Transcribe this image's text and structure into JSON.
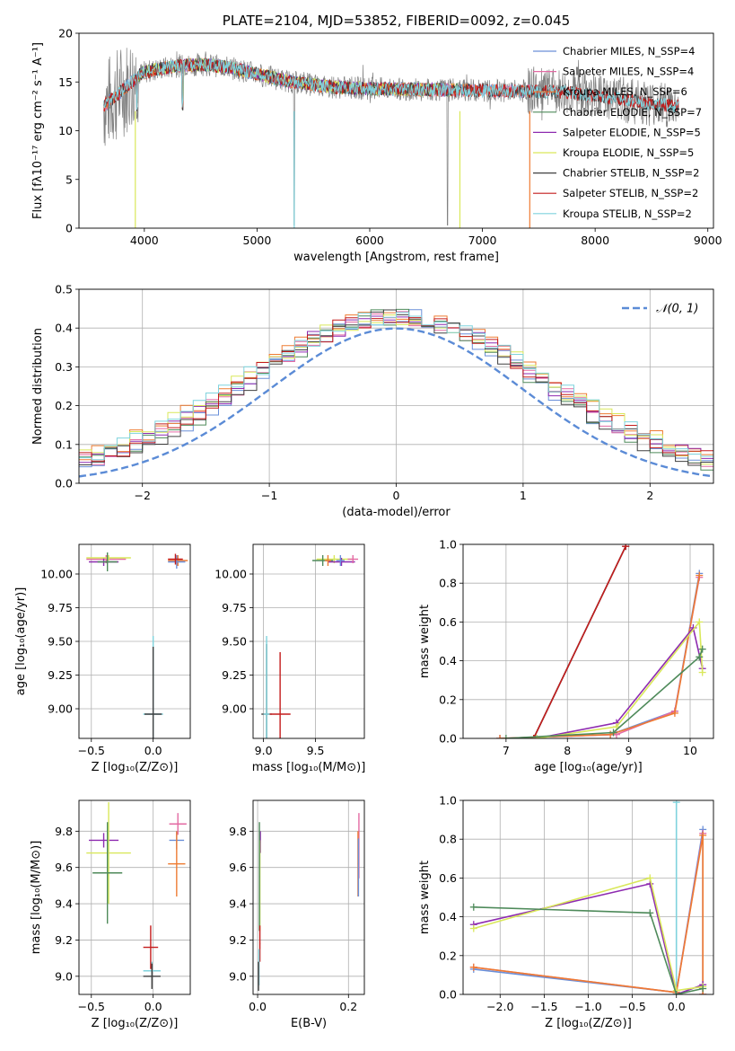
{
  "chart_data": [
    {
      "id": "spectrum",
      "type": "line",
      "title": "PLATE=2104, MJD=53852, FIBERID=0092, z=0.045",
      "xlabel": "wavelength [Angstrom, rest frame]",
      "ylabel": "Flux [fλ10⁻¹⁷ erg cm⁻² s⁻¹ A⁻¹]",
      "xlim": [
        3420,
        9050
      ],
      "ylim": [
        0,
        20
      ],
      "xticks": [
        4000,
        5000,
        6000,
        7000,
        8000,
        9000
      ],
      "yticks": [
        0,
        5,
        10,
        15,
        20
      ],
      "legend_position": "upper right",
      "observed": {
        "color": "#808080",
        "wave_range": [
          3640,
          8740
        ],
        "masked_lines_at": [
          5330,
          6690
        ]
      },
      "series": [
        {
          "name": "Chabrier MILES, N_SSP=4",
          "color": "#6a8fd8",
          "wave_range": [
            3640,
            7420
          ]
        },
        {
          "name": "Salpeter MILES, N_SSP=4",
          "color": "#e36aa3",
          "wave_range": [
            3640,
            7420
          ]
        },
        {
          "name": "Kroupa MILES, N_SSP=6",
          "color": "#ee7b32",
          "wave_range": [
            3640,
            7420
          ]
        },
        {
          "name": "Chabrier ELODIE, N_SSP=7",
          "color": "#4e8a5a",
          "wave_range": [
            3900,
            6800
          ]
        },
        {
          "name": "Salpeter ELODIE, N_SSP=5",
          "color": "#8e2bb0",
          "wave_range": [
            3900,
            6800
          ]
        },
        {
          "name": "Kroupa ELODIE, N_SSP=5",
          "color": "#d9e85a",
          "wave_range": [
            3900,
            6800
          ]
        },
        {
          "name": "Chabrier STELIB, N_SSP=2",
          "color": "#404040",
          "wave_range": [
            3640,
            8740
          ]
        },
        {
          "name": "Salpeter STELIB, N_SSP=2",
          "color": "#c41c1c",
          "wave_range": [
            3640,
            8740
          ]
        },
        {
          "name": "Kroupa STELIB, N_SSP=2",
          "color": "#7fd3dd",
          "wave_range": [
            3640,
            8740
          ]
        }
      ]
    },
    {
      "id": "residuals",
      "type": "line",
      "xlabel": "(data-model)/error",
      "ylabel": "Normed distribution",
      "xlim": [
        -2.5,
        2.5
      ],
      "ylim": [
        0,
        0.5
      ],
      "xticks": [
        -2,
        -1,
        0,
        1,
        2
      ],
      "yticks": [
        0.0,
        0.1,
        0.2,
        0.3,
        0.4,
        0.5
      ],
      "grid": true,
      "legend_position": "upper right",
      "reference": {
        "name": "𝒩(0, 1)",
        "color": "#5b8bd6",
        "style": "dashed",
        "mean": 0,
        "sigma": 1
      },
      "histograms": {
        "bin_width": 0.1,
        "x_start": -2.5,
        "n_bins": 50,
        "peak_approx": 0.47,
        "colors": [
          "#6a8fd8",
          "#e36aa3",
          "#ee7b32",
          "#4e8a5a",
          "#8e2bb0",
          "#d9e85a",
          "#404040",
          "#c41c1c",
          "#7fd3dd"
        ]
      }
    },
    {
      "id": "age-vs-Z",
      "type": "scatter",
      "xlabel": "Z [log₁₀(Z/Z⊙)]",
      "ylabel": "age  [log₁₀(age/yr)]",
      "xlim": [
        -0.6,
        0.3
      ],
      "ylim": [
        8.78,
        10.22
      ],
      "xticks": [
        -0.5,
        0.0
      ],
      "yticks": [
        9.0,
        9.25,
        9.5,
        9.75,
        10.0
      ],
      "points": [
        {
          "x": -0.38,
          "y": 10.11,
          "xerr": 0.16,
          "yerr": 0.03,
          "color": "#e36aa3"
        },
        {
          "x": -0.4,
          "y": 10.09,
          "xerr": 0.12,
          "yerr": 0.03,
          "color": "#8e2bb0"
        },
        {
          "x": -0.36,
          "y": 10.12,
          "xerr": 0.18,
          "yerr": 0.02,
          "color": "#d9e85a"
        },
        {
          "x": -0.37,
          "y": 10.09,
          "xerr": 0.08,
          "yerr": 0.07,
          "color": "#4e8a5a"
        },
        {
          "x": 0.2,
          "y": 10.1,
          "xerr": 0.08,
          "yerr": 0.04,
          "color": "#ee7b32"
        },
        {
          "x": 0.19,
          "y": 10.09,
          "xerr": 0.07,
          "yerr": 0.05,
          "color": "#6a8fd8"
        },
        {
          "x": 0.18,
          "y": 10.11,
          "xerr": 0.06,
          "yerr": 0.04,
          "color": "#c41c1c"
        },
        {
          "x": 0.0,
          "y": 8.96,
          "xerr": 0.08,
          "yerr": 0.58,
          "color": "#7fd3dd"
        },
        {
          "x": 0.0,
          "y": 8.96,
          "xerr": 0.07,
          "yerr": 0.5,
          "color": "#404040"
        }
      ]
    },
    {
      "id": "age-vs-mass",
      "type": "scatter",
      "xlabel": "mass [log₁₀(M/M⊙)]",
      "xlim": [
        8.9,
        9.97
      ],
      "ylim": [
        8.78,
        10.22
      ],
      "xticks": [
        9.0,
        9.5
      ],
      "yticks": [
        9.0,
        9.25,
        9.5,
        9.75,
        10.0
      ],
      "points": [
        {
          "x": 9.68,
          "y": 10.11,
          "xerr": 0.17,
          "yerr": 0.03,
          "color": "#d9e85a"
        },
        {
          "x": 9.75,
          "y": 10.09,
          "xerr": 0.13,
          "yerr": 0.03,
          "color": "#8e2bb0"
        },
        {
          "x": 9.57,
          "y": 10.1,
          "xerr": 0.1,
          "yerr": 0.04,
          "color": "#4e8a5a"
        },
        {
          "x": 9.86,
          "y": 10.11,
          "xerr": 0.05,
          "yerr": 0.03,
          "color": "#e36aa3"
        },
        {
          "x": 9.74,
          "y": 10.1,
          "xerr": 0.04,
          "yerr": 0.04,
          "color": "#6a8fd8"
        },
        {
          "x": 9.62,
          "y": 10.1,
          "xerr": 0.03,
          "yerr": 0.04,
          "color": "#ee7b32"
        },
        {
          "x": 9.03,
          "y": 8.96,
          "xerr": 0.05,
          "yerr": 0.52,
          "color": "#404040"
        },
        {
          "x": 9.03,
          "y": 8.96,
          "xerr": 0.03,
          "yerr": 0.58,
          "color": "#7fd3dd"
        },
        {
          "x": 9.16,
          "y": 8.96,
          "xerr": 0.1,
          "yerr": 0.46,
          "color": "#c41c1c"
        }
      ]
    },
    {
      "id": "massweight-vs-age",
      "type": "line",
      "xlabel": "age  [log₁₀(age/yr)]",
      "ylabel": "mass weight",
      "xlim": [
        6.3,
        10.38
      ],
      "ylim": [
        0,
        1.0
      ],
      "xticks": [
        7,
        8,
        9,
        10
      ],
      "yticks": [
        0.0,
        0.2,
        0.4,
        0.6,
        0.8,
        1.0
      ],
      "series": [
        {
          "color": "#7fd3dd",
          "x": [
            7.45,
            8.95
          ],
          "y": [
            0.0,
            0.99
          ]
        },
        {
          "color": "#404040",
          "x": [
            7.45,
            8.95
          ],
          "y": [
            0.0,
            0.99
          ]
        },
        {
          "color": "#c41c1c",
          "x": [
            7.45,
            8.95
          ],
          "y": [
            0.0,
            0.99
          ]
        },
        {
          "color": "#6a8fd8",
          "x": [
            6.9,
            8.7,
            9.75,
            10.15
          ],
          "y": [
            0.0,
            0.02,
            0.14,
            0.85
          ]
        },
        {
          "color": "#e36aa3",
          "x": [
            6.9,
            8.8,
            9.75,
            10.15
          ],
          "y": [
            0.0,
            0.02,
            0.14,
            0.83
          ]
        },
        {
          "color": "#ee7b32",
          "x": [
            6.9,
            8.7,
            9.75,
            10.15
          ],
          "y": [
            0.0,
            0.02,
            0.13,
            0.84
          ]
        },
        {
          "color": "#8e2bb0",
          "x": [
            7.5,
            8.8,
            10.05,
            10.2
          ],
          "y": [
            0.0,
            0.08,
            0.57,
            0.36
          ]
        },
        {
          "color": "#d9e85a",
          "x": [
            7.5,
            8.8,
            10.15,
            10.2
          ],
          "y": [
            0.0,
            0.06,
            0.6,
            0.34
          ]
        },
        {
          "color": "#4e8a5a",
          "x": [
            7.0,
            8.75,
            10.15,
            10.2
          ],
          "y": [
            0.0,
            0.03,
            0.42,
            0.46
          ]
        }
      ]
    },
    {
      "id": "mass-vs-Z",
      "type": "scatter",
      "xlabel": "Z [log₁₀(Z/Z⊙)]",
      "ylabel": "mass [log₁₀(M/M⊙)]",
      "xlim": [
        -0.6,
        0.3
      ],
      "ylim": [
        8.9,
        9.97
      ],
      "xticks": [
        -0.5,
        0.0
      ],
      "yticks": [
        9.0,
        9.2,
        9.4,
        9.6,
        9.8
      ],
      "points": [
        {
          "x": 0.2,
          "y": 9.84,
          "xerr": 0.07,
          "yerr": 0.06,
          "color": "#e36aa3"
        },
        {
          "x": -0.4,
          "y": 9.75,
          "xerr": 0.12,
          "yerr": 0.04,
          "color": "#8e2bb0"
        },
        {
          "x": 0.19,
          "y": 9.75,
          "xerr": 0.06,
          "yerr": 0.05,
          "color": "#6a8fd8"
        },
        {
          "x": -0.36,
          "y": 9.68,
          "xerr": 0.18,
          "yerr": 0.28,
          "color": "#d9e85a"
        },
        {
          "x": 0.19,
          "y": 9.62,
          "xerr": 0.07,
          "yerr": 0.18,
          "color": "#ee7b32"
        },
        {
          "x": -0.37,
          "y": 9.57,
          "xerr": 0.12,
          "yerr": 0.28,
          "color": "#4e8a5a"
        },
        {
          "x": -0.02,
          "y": 9.16,
          "xerr": 0.06,
          "yerr": 0.12,
          "color": "#c41c1c"
        },
        {
          "x": -0.01,
          "y": 9.03,
          "xerr": 0.07,
          "yerr": 0.05,
          "color": "#7fd3dd"
        },
        {
          "x": -0.01,
          "y": 9.0,
          "xerr": 0.07,
          "yerr": 0.07,
          "color": "#404040"
        }
      ]
    },
    {
      "id": "mass-vs-ebv",
      "type": "scatter",
      "xlabel": "E(B-V)",
      "xlim": [
        -0.01,
        0.235
      ],
      "ylim": [
        8.9,
        9.97
      ],
      "xticks": [
        0.0,
        0.2
      ],
      "yticks": [
        9.0,
        9.2,
        9.4,
        9.6,
        9.8
      ],
      "points": [
        {
          "x": 0.223,
          "y": 9.72,
          "xerr": 0.001,
          "yerr": 0.18,
          "color": "#e36aa3"
        },
        {
          "x": 0.221,
          "y": 9.62,
          "xerr": 0.001,
          "yerr": 0.18,
          "color": "#ee7b32"
        },
        {
          "x": 0.222,
          "y": 9.6,
          "xerr": 0.001,
          "yerr": 0.16,
          "color": "#6a8fd8"
        },
        {
          "x": 0.006,
          "y": 9.74,
          "xerr": 0.001,
          "yerr": 0.06,
          "color": "#8e2bb0"
        },
        {
          "x": 0.005,
          "y": 9.5,
          "xerr": 0.001,
          "yerr": 0.25,
          "color": "#d9e85a"
        },
        {
          "x": 0.004,
          "y": 9.55,
          "xerr": 0.001,
          "yerr": 0.3,
          "color": "#4e8a5a"
        },
        {
          "x": 0.005,
          "y": 9.18,
          "xerr": 0.001,
          "yerr": 0.1,
          "color": "#c41c1c"
        },
        {
          "x": 0.003,
          "y": 9.05,
          "xerr": 0.001,
          "yerr": 0.1,
          "color": "#7fd3dd"
        },
        {
          "x": 0.002,
          "y": 9.0,
          "xerr": 0.001,
          "yerr": 0.08,
          "color": "#404040"
        }
      ]
    },
    {
      "id": "massweight-vs-Z",
      "type": "line",
      "xlabel": "Z [log₁₀(Z/Z⊙)]",
      "ylabel": "mass weight",
      "xlim": [
        -2.42,
        0.42
      ],
      "ylim": [
        0,
        1.0
      ],
      "xticks": [
        -2.0,
        -1.5,
        -1.0,
        -0.5,
        0.0
      ],
      "yticks": [
        0.0,
        0.2,
        0.4,
        0.6,
        0.8,
        1.0
      ],
      "series": [
        {
          "color": "#7fd3dd",
          "x": [
            0.0,
            0.0
          ],
          "y": [
            0.0,
            0.99
          ]
        },
        {
          "color": "#6a8fd8",
          "x": [
            -2.3,
            0.0,
            0.3,
            0.3
          ],
          "y": [
            0.13,
            0.01,
            0.85,
            0.0
          ]
        },
        {
          "color": "#e36aa3",
          "x": [
            -2.3,
            0.0,
            0.3,
            0.3
          ],
          "y": [
            0.14,
            0.01,
            0.83,
            0.0
          ]
        },
        {
          "color": "#ee7b32",
          "x": [
            -2.3,
            0.0,
            0.3,
            0.3
          ],
          "y": [
            0.14,
            0.01,
            0.82,
            0.0
          ]
        },
        {
          "color": "#8e2bb0",
          "x": [
            -2.3,
            -0.3,
            0.0,
            0.3
          ],
          "y": [
            0.36,
            0.57,
            0.0,
            0.05
          ]
        },
        {
          "color": "#d9e85a",
          "x": [
            -2.3,
            -0.3,
            0.0,
            0.3
          ],
          "y": [
            0.34,
            0.6,
            0.02,
            0.04
          ]
        },
        {
          "color": "#4e8a5a",
          "x": [
            -2.3,
            -0.3,
            0.0,
            0.3
          ],
          "y": [
            0.45,
            0.42,
            0.0,
            0.03
          ]
        }
      ]
    }
  ]
}
